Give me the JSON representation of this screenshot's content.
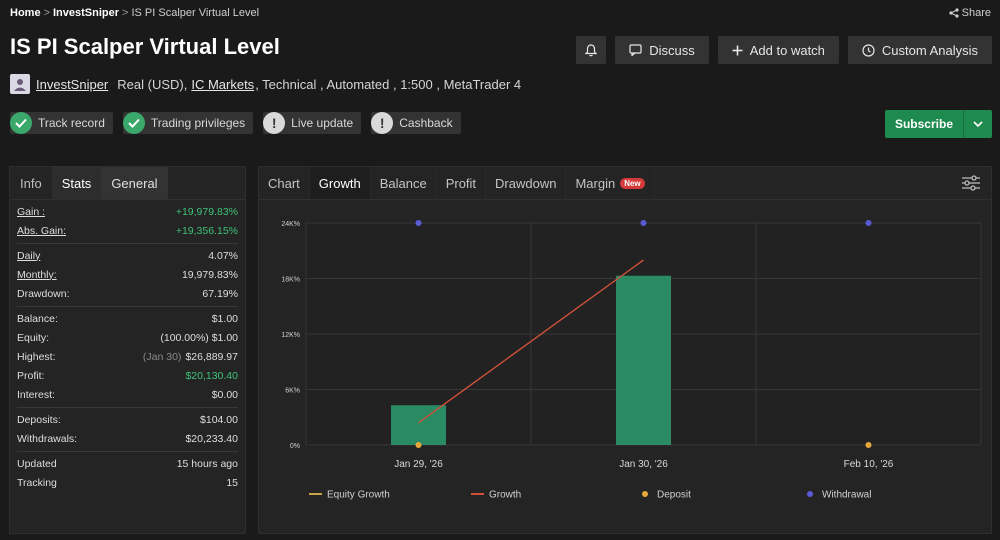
{
  "breadcrumb": {
    "home": "Home",
    "section": "InvestSniper",
    "current": "IS PI Scalper Virtual Level",
    "sep": ">"
  },
  "share_label": "Share",
  "title": "IS PI Scalper Virtual Level",
  "toolbar": {
    "discuss": "Discuss",
    "add_to_watch": "Add to watch",
    "custom_analysis": "Custom Analysis"
  },
  "meta": {
    "author": "InvestSniper",
    "account": "Real (USD),",
    "broker": "IC Markets",
    "details": ", Technical , Automated , 1:500 , MetaTrader 4"
  },
  "badges": [
    {
      "label": "Track record",
      "icon": "check-icon"
    },
    {
      "label": "Trading privileges",
      "icon": "check-icon"
    },
    {
      "label": "Live update",
      "icon": "info-icon"
    },
    {
      "label": "Cashback",
      "icon": "info-icon"
    }
  ],
  "subscribe_label": "Subscribe",
  "stats_tabs": [
    "Info",
    "Stats",
    "General"
  ],
  "stats": {
    "gain": {
      "label": "Gain :",
      "value": "+19,979.83%"
    },
    "abs_gain": {
      "label": "Abs. Gain:",
      "value": "+19,356.15%"
    },
    "daily": {
      "label": "Daily",
      "value": "4.07%"
    },
    "monthly": {
      "label": "Monthly:",
      "value": "19,979.83%"
    },
    "drawdown": {
      "label": "Drawdown:",
      "value": "67.19%"
    },
    "balance": {
      "label": "Balance:",
      "value": "$1.00"
    },
    "equity": {
      "label": "Equity:",
      "value": "(100.00%) $1.00"
    },
    "highest": {
      "label": "Highest:",
      "note": "(Jan 30)",
      "value": "$26,889.97"
    },
    "profit": {
      "label": "Profit:",
      "value": "$20,130.40"
    },
    "interest": {
      "label": "Interest:",
      "value": "$0.00"
    },
    "deposits": {
      "label": "Deposits:",
      "value": "$104.00"
    },
    "withdrawals": {
      "label": "Withdrawals:",
      "value": "$20,233.40"
    },
    "updated": {
      "label": "Updated",
      "value": "15 hours ago"
    },
    "tracking": {
      "label": "Tracking",
      "value": "15"
    }
  },
  "chart_tabs": [
    "Chart",
    "Growth",
    "Balance",
    "Profit",
    "Drawdown",
    "Margin"
  ],
  "new_badge": "New",
  "colors": {
    "bar": "#2a8a64",
    "equity_growth": "#c9a24a",
    "growth": "#d0503a",
    "deposit": "#e6a83a",
    "withdrawal": "#5b5bd6",
    "accent_green": "#1f8a4e"
  },
  "chart_data": {
    "type": "bar",
    "categories": [
      "Jan 29, '26",
      "Jan 30, '26",
      "Feb 10, '26"
    ],
    "y_ticks": [
      "0%",
      "6K%",
      "12K%",
      "18K%",
      "24K%"
    ],
    "ylim": [
      0,
      24000
    ],
    "grid": true,
    "legend_position": "bottom",
    "series": [
      {
        "name": "Growth",
        "type": "bar",
        "values": [
          4300,
          18300,
          null
        ]
      },
      {
        "name": "Equity Growth",
        "type": "line",
        "values": [
          null,
          null,
          null
        ]
      },
      {
        "name": "Growth",
        "type": "line",
        "values": [
          2400,
          20000,
          null
        ]
      },
      {
        "name": "Deposit",
        "type": "scatter",
        "values": [
          0,
          null,
          0
        ]
      },
      {
        "name": "Withdrawal",
        "type": "scatter",
        "values": [
          24000,
          24000,
          24000
        ]
      }
    ],
    "legend": [
      "Equity Growth",
      "Growth",
      "Deposit",
      "Withdrawal"
    ]
  }
}
